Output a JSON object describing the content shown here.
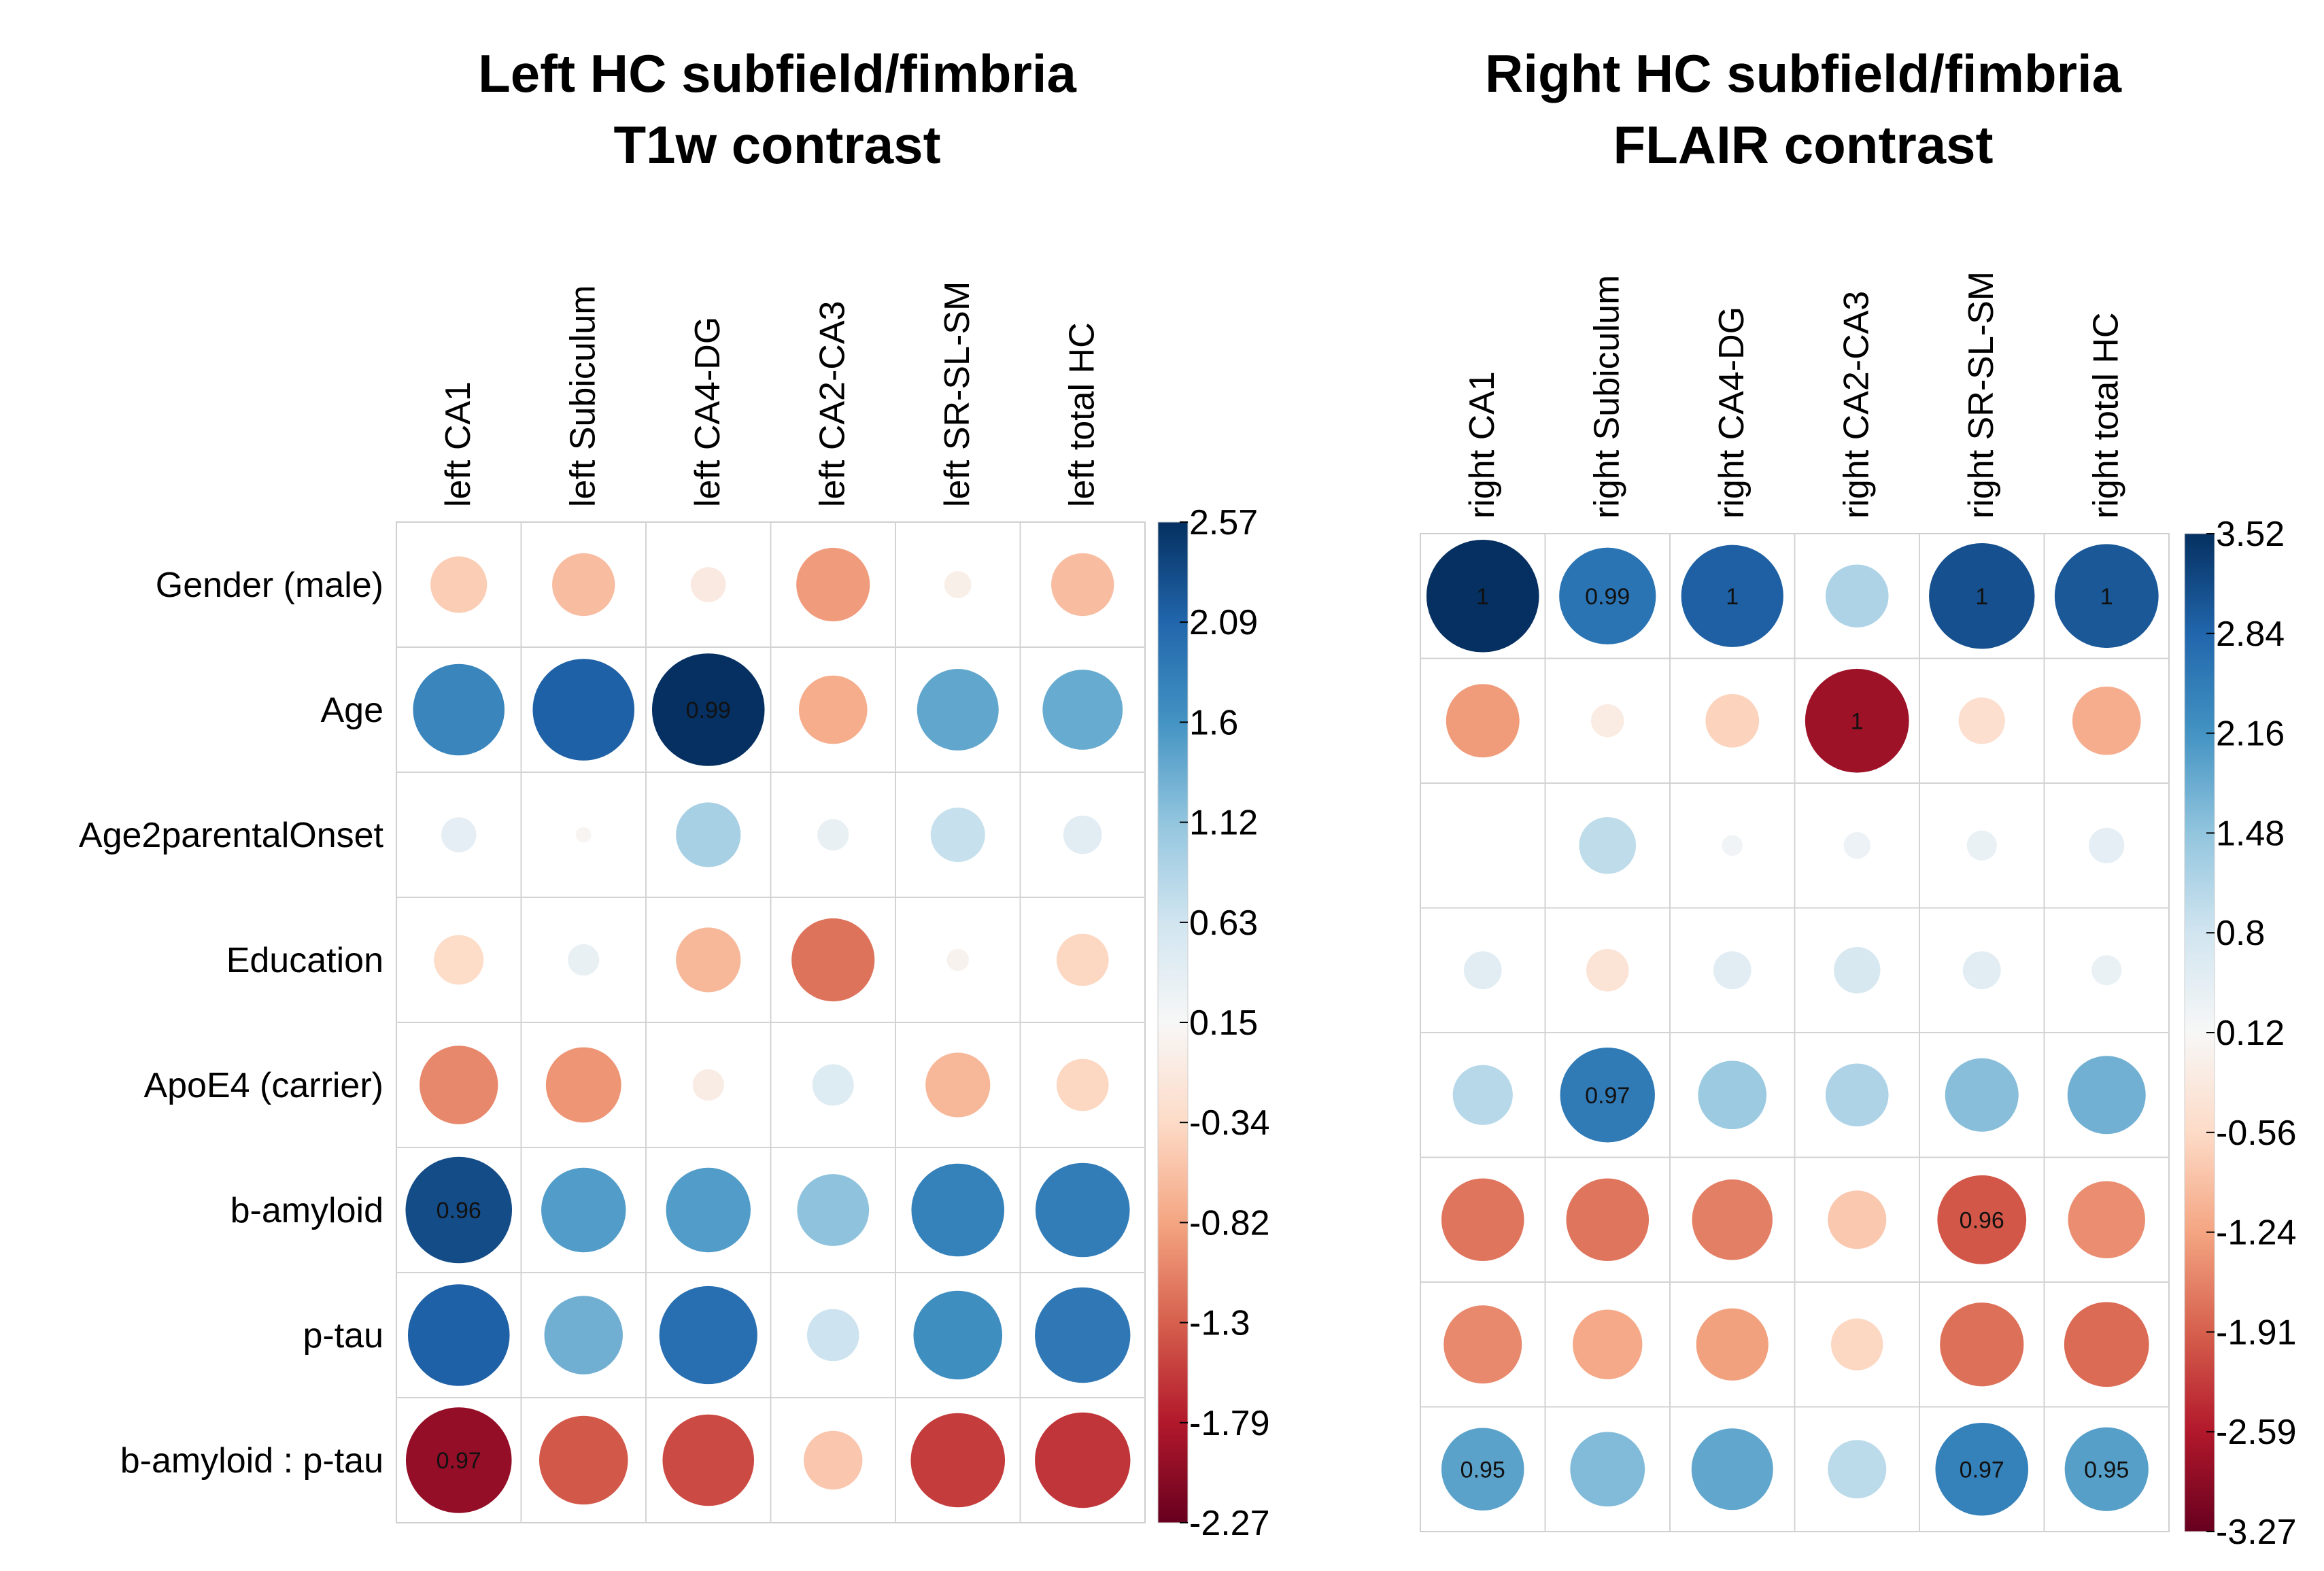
{
  "chart_data": [
    {
      "type": "heatmap",
      "subtype": "correlation-circle-plot",
      "title": [
        "Left HC subfield/fimbria",
        "T1w contrast"
      ],
      "columns": [
        "left CA1",
        "left Subiculum",
        "left CA4-DG",
        "left CA2-CA3",
        "left SR-SL-SM",
        "left total HC"
      ],
      "rows": [
        "Gender (male)",
        "Age",
        "Age2parentalOnset",
        "Education",
        "ApoE4 (carrier)",
        "b-amyloid",
        "p-tau",
        "b-amyloid : p-tau"
      ],
      "values": [
        [
          -0.65,
          -0.8,
          -0.25,
          -1.1,
          -0.15,
          -0.8
        ],
        [
          1.7,
          2.1,
          2.57,
          -0.95,
          1.35,
          1.3
        ],
        [
          0.25,
          -0.05,
          0.85,
          0.2,
          0.6,
          0.3
        ],
        [
          -0.5,
          0.2,
          -0.85,
          -1.4,
          -0.1,
          -0.55
        ],
        [
          -1.25,
          -1.15,
          -0.2,
          0.35,
          -0.85,
          -0.55
        ],
        [
          2.3,
          1.45,
          1.45,
          1.05,
          1.75,
          1.8
        ],
        [
          2.1,
          1.25,
          1.95,
          0.55,
          1.6,
          1.85
        ],
        [
          -2.27,
          -1.6,
          -1.7,
          -0.7,
          -1.8,
          -1.85
        ]
      ],
      "annotations": [
        {
          "row": 1,
          "col": 2,
          "text": "0.99"
        },
        {
          "row": 5,
          "col": 0,
          "text": "0.96"
        },
        {
          "row": 7,
          "col": 0,
          "text": "0.97"
        }
      ],
      "colorbar": {
        "min": -2.27,
        "max": 2.57,
        "ticks": [
          "2.57",
          "2.09",
          "1.6",
          "1.12",
          "0.63",
          "0.15",
          "-0.34",
          "-0.82",
          "-1.3",
          "-1.79",
          "-2.27"
        ]
      }
    },
    {
      "type": "heatmap",
      "subtype": "correlation-circle-plot",
      "title": [
        "Right HC subfield/fimbria",
        "FLAIR contrast"
      ],
      "columns": [
        "right CA1",
        "right Subiculum",
        "right CA4-DG",
        "right CA2-CA3",
        "right SR-SL-SM",
        "right total HC"
      ],
      "rows": [
        "Gender (male)",
        "Age",
        "Age2parentalOnset",
        "Education",
        "ApoE4 (carrier)",
        "b-amyloid",
        "p-tau",
        "b-amyloid : p-tau"
      ],
      "values": [
        [
          3.52,
          2.6,
          2.9,
          1.1,
          3.1,
          3.0
        ],
        [
          -1.5,
          -0.3,
          -0.8,
          -3.0,
          -0.6,
          -1.3
        ],
        [
          0.0,
          0.9,
          0.12,
          0.2,
          0.25,
          0.35
        ],
        [
          0.4,
          -0.5,
          0.4,
          0.6,
          0.4,
          0.25
        ],
        [
          1.0,
          2.5,
          1.3,
          1.1,
          1.5,
          1.7
        ],
        [
          -1.9,
          -1.9,
          -1.8,
          -0.95,
          -2.2,
          -1.65
        ],
        [
          -1.7,
          -1.35,
          -1.45,
          -0.75,
          -1.95,
          -2.0
        ],
        [
          1.9,
          1.55,
          1.85,
          0.95,
          2.4,
          1.95
        ]
      ],
      "annotations": [
        {
          "row": 0,
          "col": 0,
          "text": "1"
        },
        {
          "row": 0,
          "col": 1,
          "text": "0.99"
        },
        {
          "row": 0,
          "col": 2,
          "text": "1"
        },
        {
          "row": 0,
          "col": 4,
          "text": "1"
        },
        {
          "row": 0,
          "col": 5,
          "text": "1"
        },
        {
          "row": 1,
          "col": 3,
          "text": "1"
        },
        {
          "row": 4,
          "col": 1,
          "text": "0.97"
        },
        {
          "row": 5,
          "col": 4,
          "text": "0.96"
        },
        {
          "row": 7,
          "col": 0,
          "text": "0.95"
        },
        {
          "row": 7,
          "col": 4,
          "text": "0.97"
        },
        {
          "row": 7,
          "col": 5,
          "text": "0.95"
        }
      ],
      "colorbar": {
        "min": -3.27,
        "max": 3.52,
        "ticks": [
          "3.52",
          "2.84",
          "2.16",
          "1.48",
          "0.8",
          "0.12",
          "-0.56",
          "-1.24",
          "-1.91",
          "-2.59",
          "-3.27"
        ]
      }
    }
  ],
  "colors": {
    "negative_extreme": "#67001f",
    "negative_strong": "#b2182b",
    "negative_mid": "#d6604d",
    "negative_weak": "#f4a582",
    "negative_faint": "#fddbc7",
    "neutral": "#f7f7f7",
    "positive_faint": "#d1e5f0",
    "positive_weak": "#92c5de",
    "positive_mid": "#4393c3",
    "positive_strong": "#2166ac",
    "positive_extreme": "#053061",
    "grid": "#d0d0d0"
  }
}
